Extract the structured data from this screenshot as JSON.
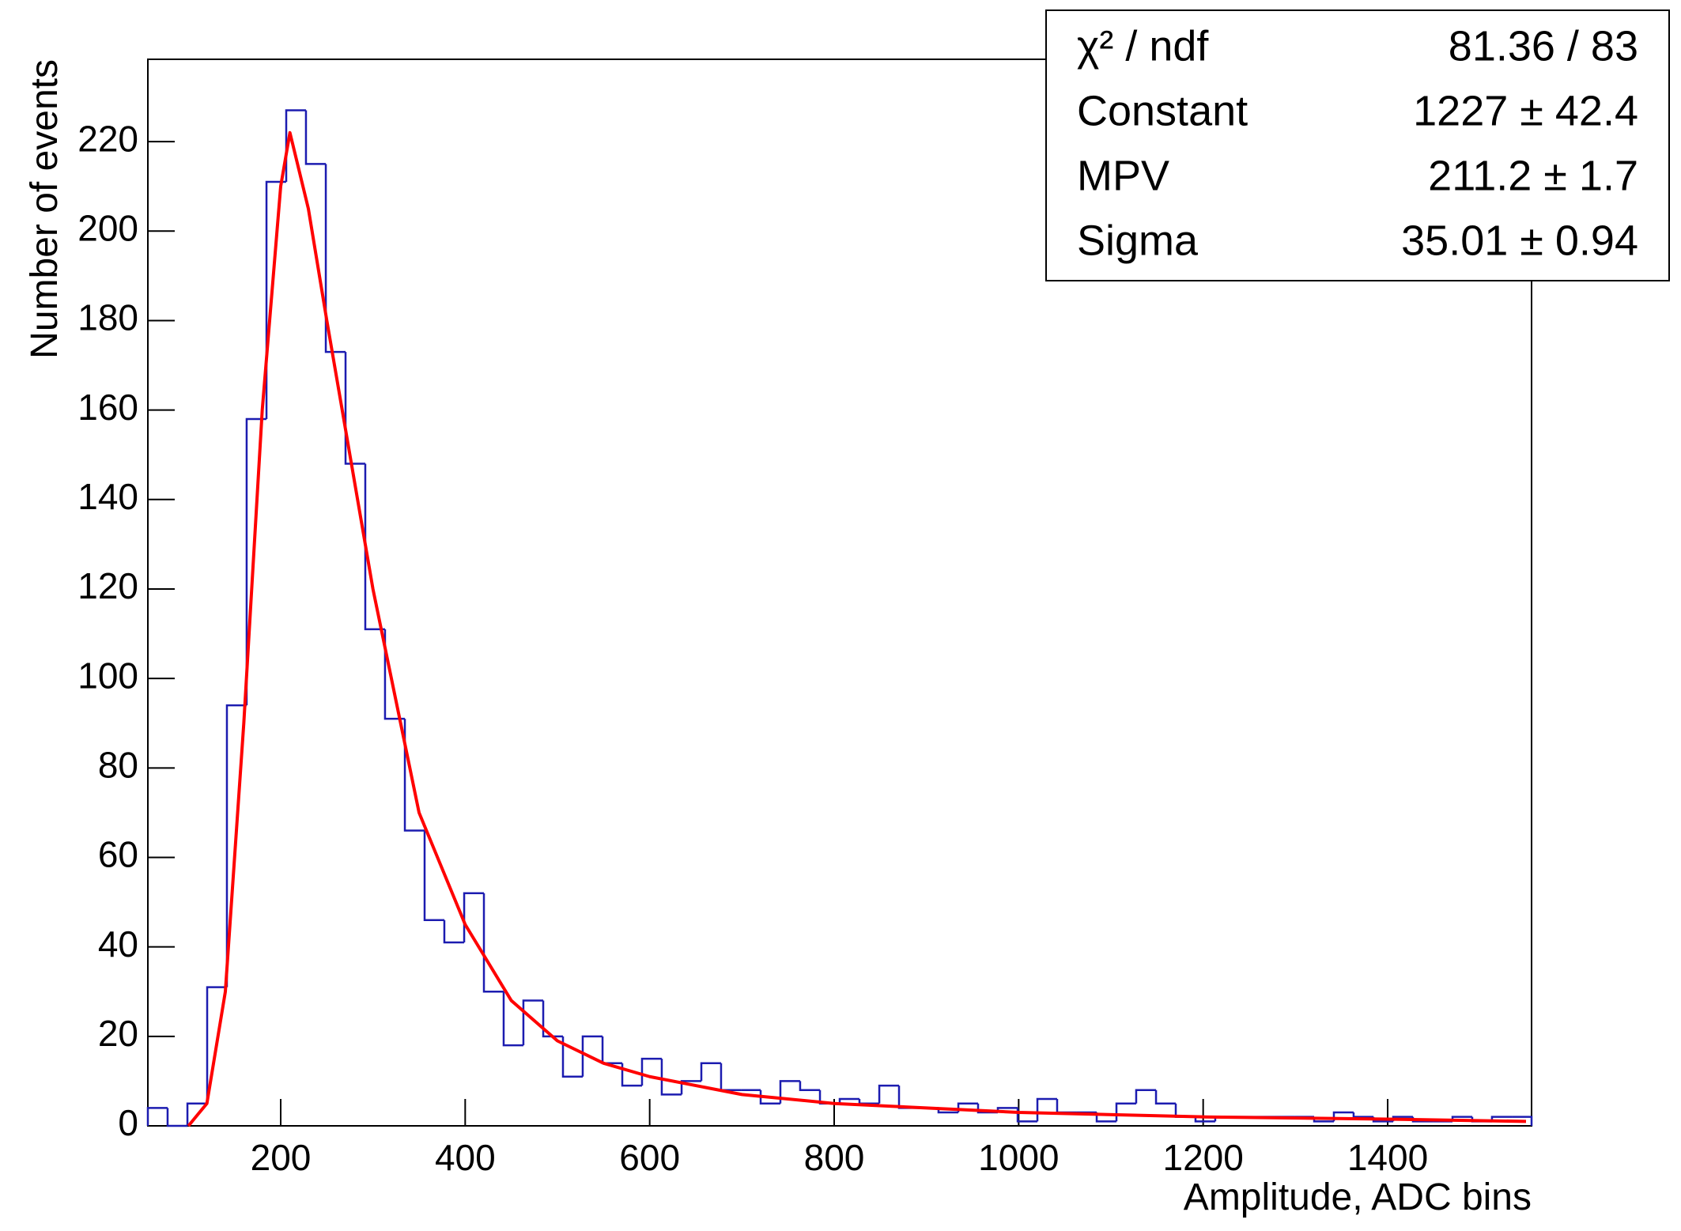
{
  "chart_data": {
    "type": "histogram",
    "xlabel": "Amplitude, ADC bins",
    "ylabel": "Number of events",
    "xlim": [
      56,
      1556
    ],
    "ylim": [
      0,
      238.4
    ],
    "xticks": [
      200,
      400,
      600,
      800,
      1000,
      1200,
      1400
    ],
    "yticks": [
      0,
      20,
      40,
      60,
      80,
      100,
      120,
      140,
      160,
      180,
      200,
      220
    ],
    "color": "#1c1cb0",
    "bins": [
      56,
      77.4,
      98.9,
      120.3,
      141.7,
      163.1,
      184.6,
      206,
      227.4,
      248.9,
      270.3,
      291.7,
      313.1,
      334.6,
      356,
      377.4,
      398.9,
      420.3,
      441.7,
      463.1,
      484.6,
      506,
      527.4,
      548.9,
      570.3,
      591.7,
      613.1,
      634.6,
      656,
      677.4,
      698.9,
      720.3,
      741.7,
      763.1,
      784.6,
      806,
      827.4,
      848.9,
      870.3,
      891.7,
      913.1,
      934.6,
      956,
      977.4,
      998.9,
      1020.3,
      1041.7,
      1063.1,
      1084.6,
      1106,
      1127.4,
      1148.9,
      1170.3,
      1191.7,
      1213.1,
      1234.6,
      1256,
      1277.4,
      1298.9,
      1320.3,
      1341.7,
      1363.1,
      1384.6,
      1406,
      1427.4,
      1448.9,
      1470.3,
      1491.7,
      1513.1,
      1534.6,
      1556
    ],
    "values": [
      4,
      0,
      5,
      31,
      94,
      158,
      211,
      227,
      215,
      173,
      148,
      111,
      91,
      66,
      46,
      41,
      52,
      30,
      18,
      28,
      20,
      11,
      20,
      14,
      9,
      15,
      7,
      10,
      14,
      8,
      8,
      5,
      10,
      8,
      5,
      6,
      5,
      9,
      4,
      4,
      3,
      5,
      3,
      4,
      1,
      6,
      3,
      3,
      1,
      5,
      8,
      5,
      2,
      1,
      2,
      2,
      2,
      2,
      2,
      1,
      3,
      2,
      1,
      2,
      1,
      1,
      2,
      1,
      2,
      2
    ],
    "fit_color": "#ff0000",
    "fit_x": [
      100,
      120,
      140,
      160,
      180,
      200,
      210,
      230,
      250,
      275,
      300,
      325,
      350,
      400,
      450,
      500,
      550,
      600,
      700,
      800,
      900,
      1000,
      1200,
      1400,
      1550
    ],
    "fit_values": [
      0,
      5,
      30,
      90,
      160,
      210,
      222,
      205,
      180,
      150,
      120,
      95,
      70,
      45,
      28,
      19,
      14,
      11,
      7,
      5,
      4,
      3,
      2,
      1.5,
      1
    ],
    "stats": [
      {
        "label": "χ² / ndf",
        "value": "81.36 / 83"
      },
      {
        "label": "Constant",
        "value": "1227 ± 42.4"
      },
      {
        "label": "MPV",
        "value": "211.2 ± 1.7"
      },
      {
        "label": "Sigma",
        "value": "35.01 ± 0.94"
      }
    ]
  }
}
